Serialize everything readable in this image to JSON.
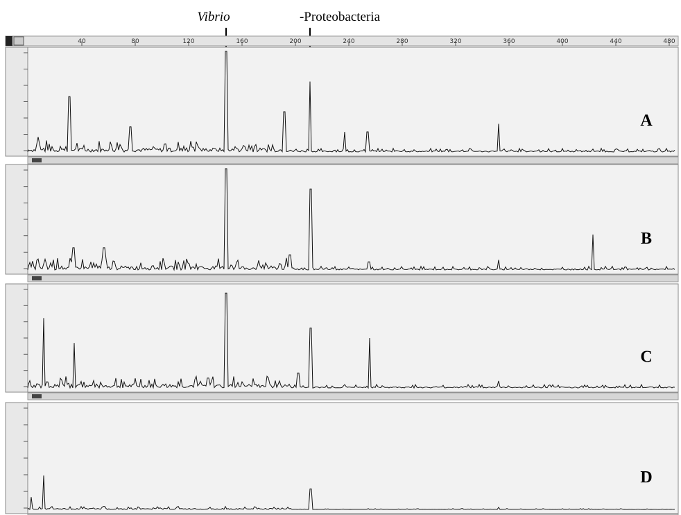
{
  "annotations": [
    "Vibrio",
    "-Proteobacteria"
  ],
  "ruler": {
    "ticks": [
      "40",
      "80",
      "120",
      "160",
      "200",
      "240",
      "280",
      "320",
      "360",
      "400",
      "440",
      "480"
    ]
  },
  "panels": [
    {
      "label": "A"
    },
    {
      "label": "B"
    },
    {
      "label": "C"
    },
    {
      "label": "D"
    }
  ]
}
